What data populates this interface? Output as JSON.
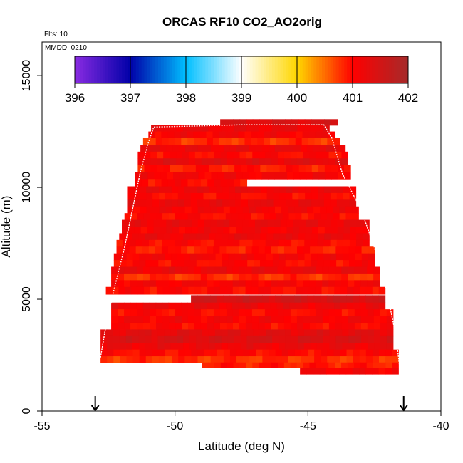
{
  "chart_data": {
    "type": "heatmap",
    "title": "ORCAS RF10 CO2_AO2orig",
    "subtitle_flights": "Flts: 10",
    "subtitle_date": "MMDD: 0210",
    "xlabel": "Latitude (deg N)",
    "ylabel": "Altitude (m)",
    "xlim": [
      -55,
      -40
    ],
    "ylim": [
      0,
      16500
    ],
    "x_ticks": [
      -55,
      -50,
      -45,
      -40
    ],
    "x_tick_labels": [
      "-55",
      "-50",
      "-45",
      "-40"
    ],
    "y_ticks": [
      0,
      5000,
      10000,
      15000
    ],
    "y_tick_labels": [
      "0",
      "5000",
      "10000",
      "15000"
    ],
    "colorbar": {
      "min": 396,
      "max": 402,
      "ticks": [
        396,
        397,
        398,
        399,
        400,
        401,
        402
      ],
      "tick_labels": [
        "396",
        "397",
        "398",
        "399",
        "400",
        "401",
        "402"
      ],
      "colors": [
        "#8a2be2",
        "#0000a8",
        "#00bfff",
        "#ffffff",
        "#ffd700",
        "#ff0000",
        "#a52a2a"
      ]
    },
    "arrows_at_latitude": [
      -53,
      -41.4
    ],
    "profile_track": [
      {
        "lat": -52.8,
        "alt": 2400
      },
      {
        "lat": -52.6,
        "alt": 3800
      },
      {
        "lat": -52.3,
        "alt": 5400
      },
      {
        "lat": -51.9,
        "alt": 7300
      },
      {
        "lat": -51.6,
        "alt": 9000
      },
      {
        "lat": -51.3,
        "alt": 10700
      },
      {
        "lat": -51.0,
        "alt": 12000
      },
      {
        "lat": -50.8,
        "alt": 12700
      },
      {
        "lat": -49.0,
        "alt": 12750
      },
      {
        "lat": -47.5,
        "alt": 12800
      },
      {
        "lat": -44.4,
        "alt": 12800
      },
      {
        "lat": -44.1,
        "alt": 12200
      },
      {
        "lat": -43.7,
        "alt": 10600
      },
      {
        "lat": -43.0,
        "alt": 9000
      },
      {
        "lat": -42.5,
        "alt": 7300
      },
      {
        "lat": -42.0,
        "alt": 5200
      },
      {
        "lat": -41.7,
        "alt": 3400
      },
      {
        "lat": -41.5,
        "alt": 1500
      }
    ],
    "rows": [
      {
        "alt": 12900,
        "lat_min": -48.3,
        "lat_max": -43.9,
        "value": 401.4
      },
      {
        "alt": 12650,
        "lat_min": -50.9,
        "lat_max": -44.2,
        "value": 401.2
      },
      {
        "alt": 12350,
        "lat_min": -51.0,
        "lat_max": -44.0,
        "value": 401.1
      },
      {
        "alt": 12050,
        "lat_min": -51.2,
        "lat_max": -43.8,
        "value": 400.8
      },
      {
        "alt": 11750,
        "lat_min": -51.3,
        "lat_max": -43.6,
        "value": 401.2
      },
      {
        "alt": 11450,
        "lat_min": -51.4,
        "lat_max": -43.5,
        "value": 401.0
      },
      {
        "alt": 11150,
        "lat_min": -51.4,
        "lat_max": -43.5,
        "value": 401.3
      },
      {
        "alt": 10850,
        "lat_min": -51.4,
        "lat_max": -43.4,
        "value": 400.9
      },
      {
        "alt": 10550,
        "lat_min": -51.5,
        "lat_max": -43.4,
        "value": 401.1
      },
      {
        "alt": 10200,
        "lat_min": -51.5,
        "lat_max": -47.3,
        "value": 401.0
      },
      {
        "alt": 9900,
        "lat_min": -51.8,
        "lat_max": -43.2,
        "value": 401.2
      },
      {
        "alt": 9600,
        "lat_min": -51.8,
        "lat_max": -43.2,
        "value": 401.0
      },
      {
        "alt": 9300,
        "lat_min": -51.8,
        "lat_max": -43.2,
        "value": 401.2
      },
      {
        "alt": 9000,
        "lat_min": -51.8,
        "lat_max": -43.1,
        "value": 401.1
      },
      {
        "alt": 8700,
        "lat_min": -51.9,
        "lat_max": -43.1,
        "value": 401.0
      },
      {
        "alt": 8400,
        "lat_min": -52.0,
        "lat_max": -42.7,
        "value": 401.2
      },
      {
        "alt": 8100,
        "lat_min": -52.0,
        "lat_max": -42.7,
        "value": 401.1
      },
      {
        "alt": 7800,
        "lat_min": -52.1,
        "lat_max": -42.7,
        "value": 401.2
      },
      {
        "alt": 7500,
        "lat_min": -52.2,
        "lat_max": -42.7,
        "value": 401.0
      },
      {
        "alt": 7200,
        "lat_min": -52.2,
        "lat_max": -42.5,
        "value": 400.9
      },
      {
        "alt": 6900,
        "lat_min": -52.3,
        "lat_max": -42.5,
        "value": 401.1
      },
      {
        "alt": 6600,
        "lat_min": -52.3,
        "lat_max": -42.5,
        "value": 401.0
      },
      {
        "alt": 6300,
        "lat_min": -52.4,
        "lat_max": -42.3,
        "value": 401.2
      },
      {
        "alt": 6000,
        "lat_min": -52.4,
        "lat_max": -42.3,
        "value": 400.8
      },
      {
        "alt": 5700,
        "lat_min": -52.4,
        "lat_max": -42.3,
        "value": 401.1
      },
      {
        "alt": 5400,
        "lat_min": -52.6,
        "lat_max": -42.1,
        "value": 401.0
      },
      {
        "alt": 5000,
        "lat_min": -49.4,
        "lat_max": -42.1,
        "value": 401.5
      },
      {
        "alt": 4700,
        "lat_min": -52.4,
        "lat_max": -42.1,
        "value": 401.2
      },
      {
        "alt": 4400,
        "lat_min": -52.4,
        "lat_max": -41.8,
        "value": 401.0
      },
      {
        "alt": 4100,
        "lat_min": -52.4,
        "lat_max": -41.8,
        "value": 401.1
      },
      {
        "alt": 3800,
        "lat_min": -52.4,
        "lat_max": -41.8,
        "value": 401.0
      },
      {
        "alt": 3500,
        "lat_min": -52.8,
        "lat_max": -41.8,
        "value": 401.3
      },
      {
        "alt": 3200,
        "lat_min": -52.8,
        "lat_max": -41.8,
        "value": 401.4
      },
      {
        "alt": 2900,
        "lat_min": -52.8,
        "lat_max": -41.8,
        "value": 401.2
      },
      {
        "alt": 2600,
        "lat_min": -52.8,
        "lat_max": -41.6,
        "value": 401.0
      },
      {
        "alt": 2300,
        "lat_min": -52.8,
        "lat_max": -41.6,
        "value": 400.8
      },
      {
        "alt": 2050,
        "lat_min": -49.0,
        "lat_max": -41.6,
        "value": 400.9
      },
      {
        "alt": 1800,
        "lat_min": -45.3,
        "lat_max": -41.6,
        "value": 401.1
      }
    ]
  }
}
